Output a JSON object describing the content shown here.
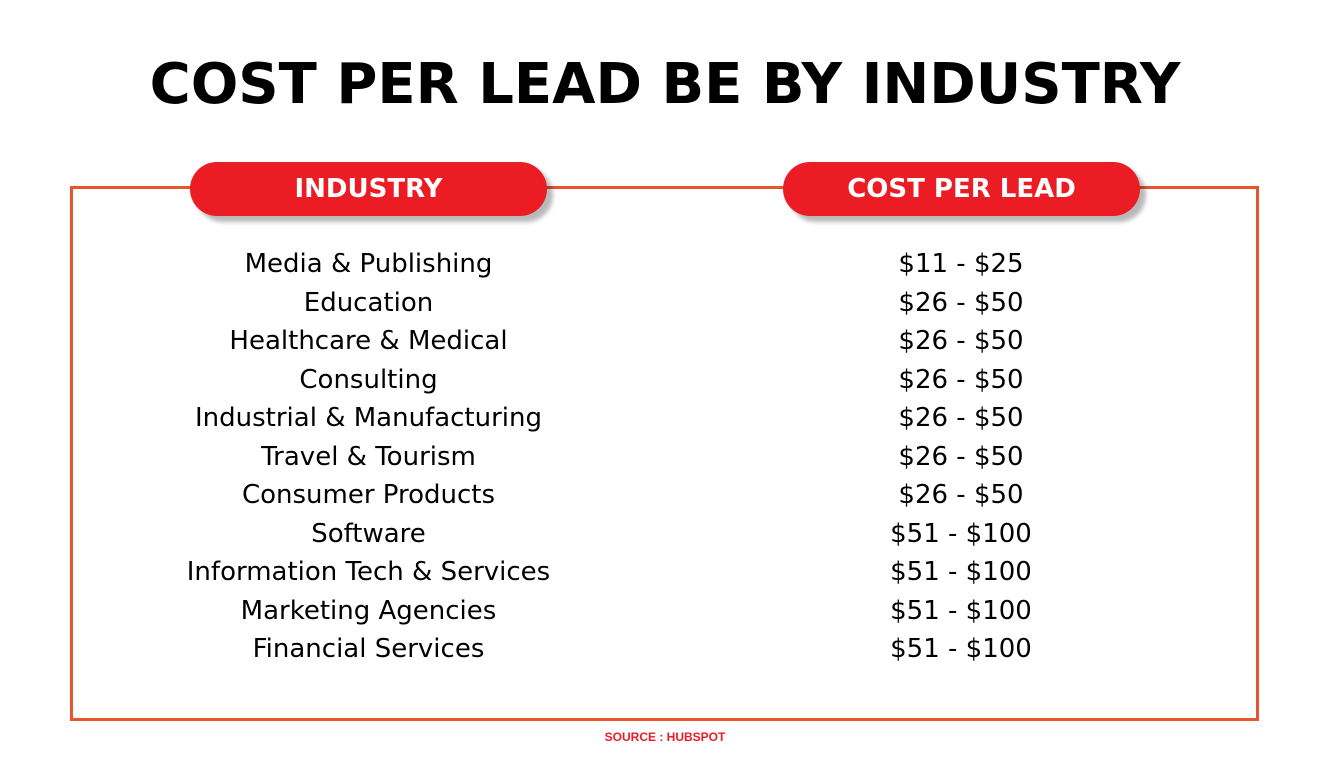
{
  "chart_data": {
    "type": "table",
    "title": "COST PER LEAD BE BY INDUSTRY",
    "columns": [
      "INDUSTRY",
      "COST PER LEAD"
    ],
    "rows": [
      {
        "industry": "Media & Publishing",
        "cost": "$11 - $25"
      },
      {
        "industry": "Education",
        "cost": "$26 - $50"
      },
      {
        "industry": "Healthcare & Medical",
        "cost": "$26 - $50"
      },
      {
        "industry": "Consulting",
        "cost": "$26 - $50"
      },
      {
        "industry": "Industrial & Manufacturing",
        "cost": "$26 - $50"
      },
      {
        "industry": "Travel & Tourism",
        "cost": "$26 - $50"
      },
      {
        "industry": "Consumer Products",
        "cost": "$26 - $50"
      },
      {
        "industry": "Software",
        "cost": "$51 - $100"
      },
      {
        "industry": "Information Tech & Services",
        "cost": "$51 - $100"
      },
      {
        "industry": "Marketing Agencies",
        "cost": "$51 - $100"
      },
      {
        "industry": "Financial Services",
        "cost": "$51 - $100"
      }
    ],
    "source": "SOURCE : HUBSPOT"
  },
  "colors": {
    "header_pill": "#ec1c24",
    "frame_border": "#e8542c",
    "source_text": "#ec1c24"
  }
}
